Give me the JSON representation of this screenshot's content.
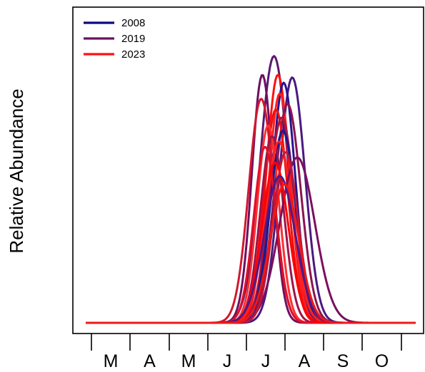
{
  "chart_data": {
    "type": "line",
    "title": "",
    "xlabel": "",
    "ylabel": "Relative Abundance",
    "x_ticks": [
      "M",
      "A",
      "M",
      "J",
      "J",
      "A",
      "S",
      "O"
    ],
    "xlim": [
      0,
      8.5
    ],
    "ylim": [
      0,
      1.05
    ],
    "grid": false,
    "legend": {
      "position": "top-left",
      "entries": [
        {
          "label": "2008",
          "color": "#0a0a80"
        },
        {
          "label": "2019",
          "color": "#6e0f60"
        },
        {
          "label": "2023",
          "color": "#ff1010"
        }
      ]
    },
    "series": [
      {
        "color": "#5a1a70",
        "mean": 4.85,
        "sd": 0.36,
        "peak": 1.0
      },
      {
        "color": "#6e0f60",
        "mean": 4.55,
        "sd": 0.27,
        "peak": 0.93
      },
      {
        "color": "#4a1a80",
        "mean": 5.32,
        "sd": 0.33,
        "peak": 0.92
      },
      {
        "color": "#ff1010",
        "mean": 4.95,
        "sd": 0.3,
        "peak": 0.93
      },
      {
        "color": "#2a1290",
        "mean": 5.1,
        "sd": 0.3,
        "peak": 0.9
      },
      {
        "color": "#ff1f1f",
        "mean": 5.0,
        "sd": 0.29,
        "peak": 0.86
      },
      {
        "color": "#d0182e",
        "mean": 4.52,
        "sd": 0.32,
        "peak": 0.84
      },
      {
        "color": "#8a1550",
        "mean": 5.2,
        "sd": 0.34,
        "peak": 0.82
      },
      {
        "color": "#ee1010",
        "mean": 4.9,
        "sd": 0.31,
        "peak": 0.8
      },
      {
        "color": "#b0143c",
        "mean": 5.05,
        "sd": 0.33,
        "peak": 0.77
      },
      {
        "color": "#ff3030",
        "mean": 4.7,
        "sd": 0.28,
        "peak": 0.74
      },
      {
        "color": "#1a1a90",
        "mean": 5.08,
        "sd": 0.33,
        "peak": 0.72
      },
      {
        "color": "#a0144a",
        "mean": 4.8,
        "sd": 0.3,
        "peak": 0.7
      },
      {
        "color": "#ff2222",
        "mean": 4.98,
        "sd": 0.35,
        "peak": 0.68
      },
      {
        "color": "#7a1060",
        "mean": 5.45,
        "sd": 0.45,
        "peak": 0.62
      },
      {
        "color": "#e0102a",
        "mean": 4.62,
        "sd": 0.29,
        "peak": 0.66
      },
      {
        "color": "#c01838",
        "mean": 5.15,
        "sd": 0.32,
        "peak": 0.64
      },
      {
        "color": "#ff0000",
        "mean": 4.88,
        "sd": 0.34,
        "peak": 0.6
      },
      {
        "color": "#50188a",
        "mean": 5.0,
        "sd": 0.4,
        "peak": 0.55
      },
      {
        "color": "#f01818",
        "mean": 5.12,
        "sd": 0.37,
        "peak": 0.52
      }
    ]
  }
}
